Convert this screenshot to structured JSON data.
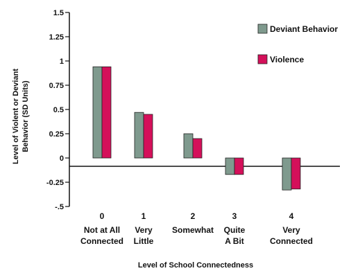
{
  "chart_data": {
    "type": "bar",
    "title": "",
    "xlabel": "Level of School Connectedness",
    "ylabel_lines": [
      "Level of Violent or Deviant",
      "Behavior (SD Units)"
    ],
    "ylim": [
      -0.5,
      1.5
    ],
    "yticks": [
      {
        "value": 1.5,
        "label": "1.5"
      },
      {
        "value": 1.25,
        "label": "1.25"
      },
      {
        "value": 1,
        "label": "1"
      },
      {
        "value": 0.75,
        "label": "0.75"
      },
      {
        "value": 0.5,
        "label": "0.5"
      },
      {
        "value": 0.25,
        "label": "0.25"
      },
      {
        "value": 0,
        "label": "0"
      },
      {
        "value": -0.25,
        "label": "-0.25"
      },
      {
        "value": -0.5,
        "label": "-.5"
      }
    ],
    "categories": [
      {
        "number": "0",
        "lines": [
          "Not at All",
          "Connected"
        ]
      },
      {
        "number": "1",
        "lines": [
          "Very",
          "Little"
        ]
      },
      {
        "number": "2",
        "lines": [
          "Somewhat"
        ]
      },
      {
        "number": "3",
        "lines": [
          "Quite",
          "A Bit"
        ]
      },
      {
        "number": "4",
        "lines": [
          "Very",
          "Connected"
        ]
      }
    ],
    "series": [
      {
        "name": "Deviant Behavior",
        "color": "#7f9a8e",
        "values": [
          0.94,
          0.47,
          0.25,
          -0.17,
          -0.33
        ]
      },
      {
        "name": "Violence",
        "color": "#d4105a",
        "values": [
          0.94,
          0.45,
          0.2,
          -0.17,
          -0.32
        ]
      }
    ],
    "legend_position": "top-right",
    "grid": false
  }
}
